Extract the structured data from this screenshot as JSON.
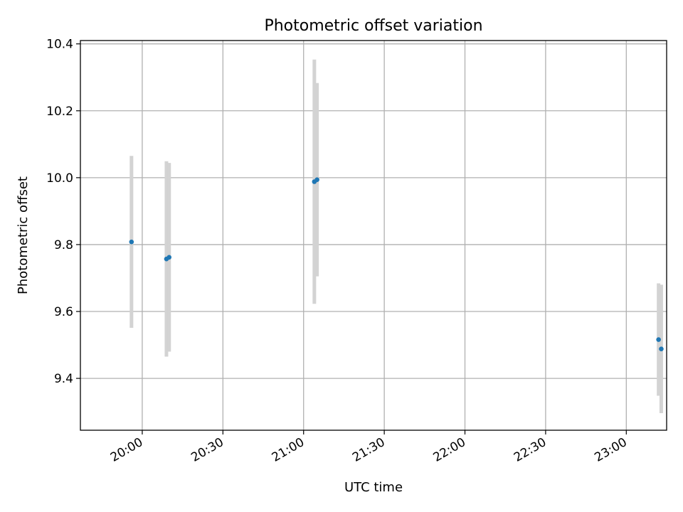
{
  "chart_data": {
    "type": "scatter",
    "title": "Photometric offset variation",
    "xlabel": "UTC time",
    "ylabel": "Photometric offset",
    "grid": true,
    "legend": "none",
    "xlim": [
      "19:37",
      "23:15"
    ],
    "ylim": [
      9.245,
      10.41
    ],
    "x_ticks": [
      "20:00",
      "20:30",
      "21:00",
      "21:30",
      "22:00",
      "22:30",
      "23:00"
    ],
    "y_ticks": [
      "9.4",
      "9.6",
      "9.8",
      "10.0",
      "10.2",
      "10.4"
    ],
    "point_color": "#1f77b4",
    "errorbar_color": "#d3d3d3",
    "series": [
      {
        "x": [
          "19:56",
          "20:09",
          "20:10",
          "21:04",
          "21:05",
          "23:12",
          "23:13"
        ],
        "y": [
          9.808,
          9.757,
          9.762,
          9.988,
          9.994,
          9.516,
          9.488
        ],
        "yerr": [
          0.257,
          0.292,
          0.282,
          0.365,
          0.289,
          0.168,
          0.192
        ]
      }
    ]
  }
}
